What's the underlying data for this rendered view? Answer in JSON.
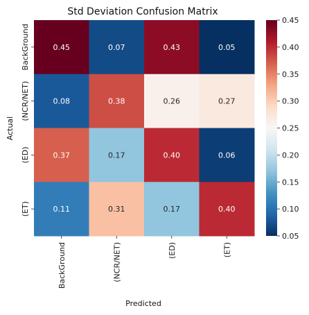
{
  "chart_data": {
    "type": "heatmap",
    "title": "Std Deviation Confusion Matrix",
    "xlabel": "Predicted",
    "ylabel": "Actual",
    "x_categories": [
      "BackGround",
      "(NCR/NET)",
      "(ED)",
      "(ET)"
    ],
    "y_categories": [
      "BackGround",
      "(NCR/NET)",
      "(ED)",
      "(ET)"
    ],
    "values": [
      [
        0.45,
        0.07,
        0.43,
        0.05
      ],
      [
        0.08,
        0.38,
        0.26,
        0.27
      ],
      [
        0.37,
        0.17,
        0.4,
        0.06
      ],
      [
        0.11,
        0.31,
        0.17,
        0.4
      ]
    ],
    "labels": [
      [
        "0.45",
        "0.07",
        "0.43",
        "0.05"
      ],
      [
        "0.08",
        "0.38",
        "0.26",
        "0.27"
      ],
      [
        "0.37",
        "0.17",
        "0.40",
        "0.06"
      ],
      [
        "0.11",
        "0.31",
        "0.17",
        "0.40"
      ]
    ],
    "colormap": "RdBu_r",
    "vmin": 0.05,
    "vmax": 0.45,
    "colorbar_ticks": [
      "0.05",
      "0.10",
      "0.15",
      "0.20",
      "0.25",
      "0.30",
      "0.35",
      "0.40",
      "0.45"
    ],
    "colorbar_tick_values": [
      0.05,
      0.1,
      0.15,
      0.2,
      0.25,
      0.3,
      0.35,
      0.4,
      0.45
    ],
    "grid": false
  }
}
